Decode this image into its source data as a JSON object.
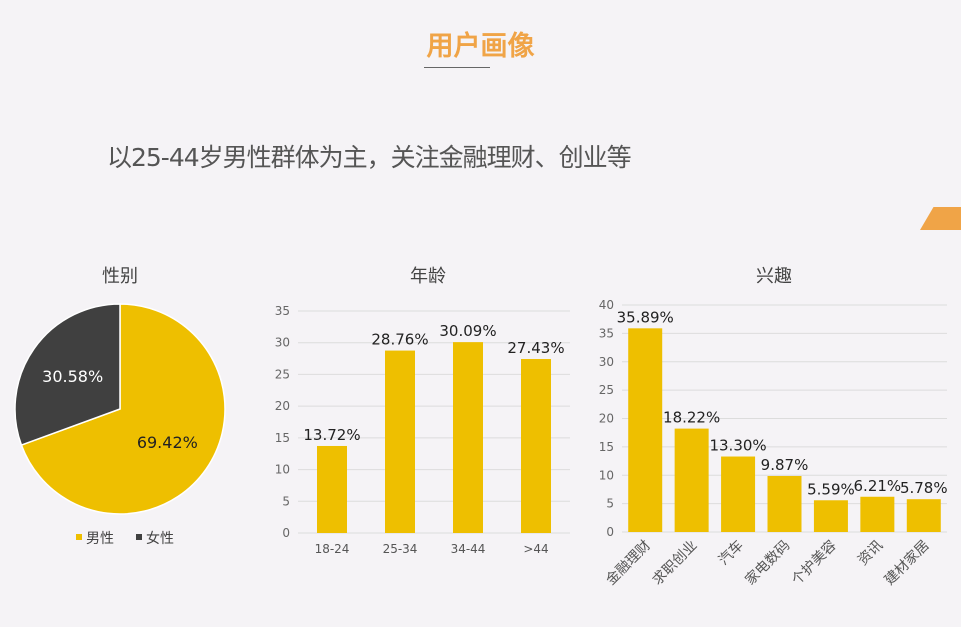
{
  "header": {
    "title": "用户画像",
    "subtitle": "以25-44岁男性群体为主，关注金融理财、创业等"
  },
  "colors": {
    "accent": "#f0a447",
    "bar": "#eebf00",
    "female": "#404040"
  },
  "chart_data": [
    {
      "type": "pie",
      "title": "性别",
      "slices": [
        {
          "name": "男性",
          "value": 69.42,
          "label": "69.42%"
        },
        {
          "name": "女性",
          "value": 30.58,
          "label": "30.58%"
        }
      ],
      "legend": "bottom"
    },
    {
      "type": "bar",
      "title": "年龄",
      "categories": [
        "18-24",
        "25-34",
        "34-44",
        ">44"
      ],
      "values": [
        13.72,
        28.76,
        30.09,
        27.43
      ],
      "labels": [
        "13.72%",
        "28.76%",
        "30.09%",
        "27.43%"
      ],
      "ylim": [
        0,
        35
      ],
      "yticks": [
        0,
        5,
        10,
        15,
        20,
        25,
        30,
        35
      ],
      "grid": true
    },
    {
      "type": "bar",
      "title": "兴趣",
      "categories": [
        "金融理财",
        "求职创业",
        "汽车",
        "家电数码",
        "个护美容",
        "资讯",
        "建材家居"
      ],
      "values": [
        35.89,
        18.22,
        13.3,
        9.87,
        5.59,
        6.21,
        5.78
      ],
      "labels": [
        "35.89%",
        "18.22%",
        "13.30%",
        "9.87%",
        "5.59%",
        "6.21%",
        "5.78%"
      ],
      "ylim": [
        0,
        40
      ],
      "yticks": [
        0,
        5,
        10,
        15,
        20,
        25,
        30,
        35,
        40
      ],
      "grid": true
    }
  ]
}
